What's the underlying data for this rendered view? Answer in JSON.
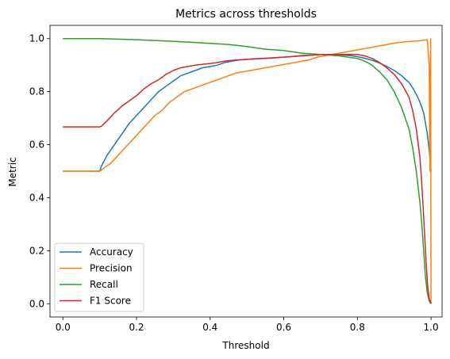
{
  "chart_data": {
    "type": "line",
    "title": "Metrics across thresholds",
    "xlabel": "Threshold",
    "ylabel": "Metric",
    "xlim": [
      -0.035,
      1.03
    ],
    "ylim": [
      -0.05,
      1.05
    ],
    "xticks": [
      "0.0",
      "0.2",
      "0.4",
      "0.6",
      "0.8",
      "1.0"
    ],
    "yticks": [
      "0.0",
      "0.2",
      "0.4",
      "0.6",
      "0.8",
      "1.0"
    ],
    "grid": false,
    "legend_position": "lower-left",
    "series": [
      {
        "name": "Accuracy",
        "color": "#1f77b4",
        "x": [
          0.0,
          0.1,
          0.105,
          0.12,
          0.14,
          0.16,
          0.18,
          0.2,
          0.22,
          0.24,
          0.26,
          0.28,
          0.3,
          0.32,
          0.34,
          0.36,
          0.38,
          0.4,
          0.42,
          0.44,
          0.46,
          0.48,
          0.5,
          0.52,
          0.54,
          0.56,
          0.58,
          0.6,
          0.62,
          0.64,
          0.66,
          0.68,
          0.7,
          0.72,
          0.74,
          0.76,
          0.78,
          0.8,
          0.82,
          0.84,
          0.86,
          0.88,
          0.9,
          0.92,
          0.94,
          0.95,
          0.96,
          0.97,
          0.98,
          0.985,
          0.99,
          0.995,
          1.0
        ],
        "y": [
          0.5,
          0.5,
          0.52,
          0.56,
          0.6,
          0.64,
          0.68,
          0.71,
          0.74,
          0.77,
          0.8,
          0.82,
          0.84,
          0.86,
          0.87,
          0.88,
          0.89,
          0.895,
          0.9,
          0.91,
          0.915,
          0.92,
          0.922,
          0.924,
          0.925,
          0.926,
          0.928,
          0.93,
          0.932,
          0.935,
          0.937,
          0.938,
          0.94,
          0.94,
          0.939,
          0.938,
          0.936,
          0.932,
          0.926,
          0.918,
          0.908,
          0.895,
          0.88,
          0.86,
          0.835,
          0.815,
          0.79,
          0.76,
          0.72,
          0.68,
          0.64,
          0.58,
          0.5
        ]
      },
      {
        "name": "Precision",
        "color": "#ff7f0e",
        "x": [
          0.0,
          0.1,
          0.11,
          0.13,
          0.15,
          0.17,
          0.19,
          0.21,
          0.23,
          0.25,
          0.27,
          0.29,
          0.31,
          0.33,
          0.35,
          0.37,
          0.39,
          0.41,
          0.43,
          0.45,
          0.47,
          0.49,
          0.51,
          0.53,
          0.55,
          0.57,
          0.59,
          0.61,
          0.63,
          0.65,
          0.67,
          0.69,
          0.71,
          0.73,
          0.75,
          0.77,
          0.79,
          0.81,
          0.83,
          0.85,
          0.87,
          0.89,
          0.91,
          0.93,
          0.95,
          0.97,
          0.98,
          0.99,
          0.995,
          0.997,
          0.999,
          1.0
        ],
        "y": [
          0.5,
          0.5,
          0.51,
          0.53,
          0.56,
          0.59,
          0.62,
          0.65,
          0.68,
          0.71,
          0.73,
          0.76,
          0.78,
          0.8,
          0.81,
          0.82,
          0.83,
          0.84,
          0.85,
          0.86,
          0.87,
          0.875,
          0.88,
          0.885,
          0.89,
          0.895,
          0.9,
          0.905,
          0.91,
          0.915,
          0.92,
          0.93,
          0.935,
          0.94,
          0.945,
          0.95,
          0.955,
          0.96,
          0.965,
          0.97,
          0.975,
          0.98,
          0.985,
          0.988,
          0.99,
          0.992,
          0.994,
          0.995,
          0.9,
          0.5,
          1.0,
          0.0
        ]
      },
      {
        "name": "Recall",
        "color": "#2ca02c",
        "x": [
          0.0,
          0.05,
          0.1,
          0.15,
          0.2,
          0.25,
          0.3,
          0.35,
          0.4,
          0.45,
          0.5,
          0.55,
          0.6,
          0.65,
          0.7,
          0.75,
          0.8,
          0.82,
          0.84,
          0.86,
          0.88,
          0.9,
          0.92,
          0.94,
          0.95,
          0.96,
          0.97,
          0.975,
          0.98,
          0.985,
          0.99,
          0.995,
          1.0
        ],
        "y": [
          1.0,
          1.0,
          1.0,
          0.998,
          0.996,
          0.993,
          0.99,
          0.986,
          0.982,
          0.978,
          0.97,
          0.96,
          0.955,
          0.945,
          0.94,
          0.935,
          0.925,
          0.915,
          0.9,
          0.875,
          0.845,
          0.8,
          0.74,
          0.66,
          0.59,
          0.5,
          0.38,
          0.3,
          0.2,
          0.1,
          0.04,
          0.01,
          0.0
        ]
      },
      {
        "name": "F1 Score",
        "color": "#d62728",
        "x": [
          0.0,
          0.1,
          0.105,
          0.12,
          0.14,
          0.16,
          0.18,
          0.2,
          0.22,
          0.24,
          0.26,
          0.28,
          0.3,
          0.32,
          0.34,
          0.36,
          0.38,
          0.4,
          0.42,
          0.44,
          0.46,
          0.48,
          0.5,
          0.55,
          0.6,
          0.65,
          0.7,
          0.75,
          0.8,
          0.82,
          0.84,
          0.86,
          0.88,
          0.9,
          0.92,
          0.94,
          0.95,
          0.96,
          0.97,
          0.975,
          0.98,
          0.985,
          0.99,
          0.995,
          1.0
        ],
        "y": [
          0.667,
          0.667,
          0.67,
          0.69,
          0.72,
          0.745,
          0.765,
          0.785,
          0.81,
          0.83,
          0.845,
          0.865,
          0.88,
          0.89,
          0.895,
          0.9,
          0.903,
          0.906,
          0.91,
          0.915,
          0.918,
          0.92,
          0.922,
          0.926,
          0.93,
          0.935,
          0.94,
          0.94,
          0.94,
          0.935,
          0.925,
          0.91,
          0.89,
          0.865,
          0.83,
          0.78,
          0.73,
          0.66,
          0.55,
          0.45,
          0.33,
          0.2,
          0.08,
          0.02,
          0.0
        ]
      }
    ]
  }
}
